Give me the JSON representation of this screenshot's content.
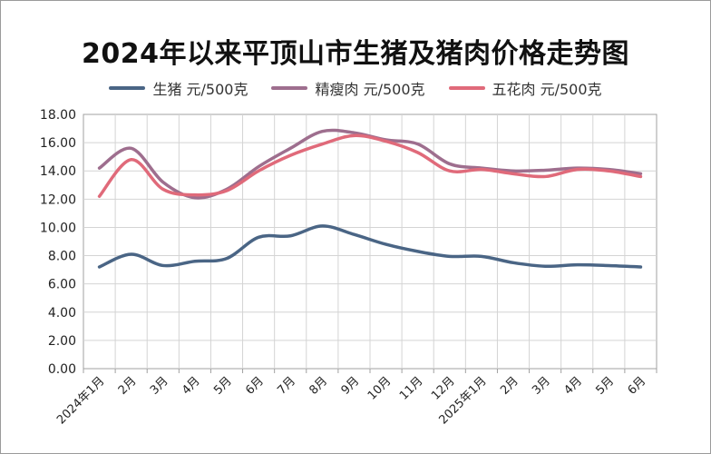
{
  "chart_data": {
    "type": "line",
    "title": "2024年以来平顶山市生猪及猪肉价格走势图",
    "categories": [
      "2024年1月",
      "2月",
      "3月",
      "4月",
      "5月",
      "6月",
      "7月",
      "8月",
      "9月",
      "10月",
      "11月",
      "12月",
      "2025年1月",
      "2月",
      "3月",
      "4月",
      "5月",
      "6月"
    ],
    "series": [
      {
        "name": "生猪 元/500克",
        "color": "#4a6585",
        "values": [
          7.2,
          8.1,
          7.3,
          7.6,
          7.8,
          9.3,
          9.4,
          10.1,
          9.5,
          8.8,
          8.3,
          7.95,
          7.95,
          7.5,
          7.25,
          7.35,
          7.3,
          7.2
        ]
      },
      {
        "name": "精瘦肉 元/500克",
        "color": "#9e6e8e",
        "values": [
          14.2,
          15.6,
          13.2,
          12.1,
          12.7,
          14.3,
          15.6,
          16.8,
          16.7,
          16.2,
          15.9,
          14.5,
          14.2,
          14.0,
          14.05,
          14.2,
          14.1,
          13.8
        ]
      },
      {
        "name": "五花肉 元/500克",
        "color": "#e06a7a",
        "values": [
          12.2,
          14.8,
          12.7,
          12.3,
          12.6,
          14.0,
          15.1,
          15.9,
          16.5,
          16.1,
          15.3,
          14.0,
          14.1,
          13.8,
          13.6,
          14.1,
          14.0,
          13.6
        ]
      }
    ],
    "ylim": [
      0,
      18
    ],
    "yticks": [
      "0.00",
      "2.00",
      "4.00",
      "6.00",
      "8.00",
      "10.00",
      "12.00",
      "14.00",
      "16.00",
      "18.00"
    ],
    "grid": true,
    "legend_position": "top"
  }
}
